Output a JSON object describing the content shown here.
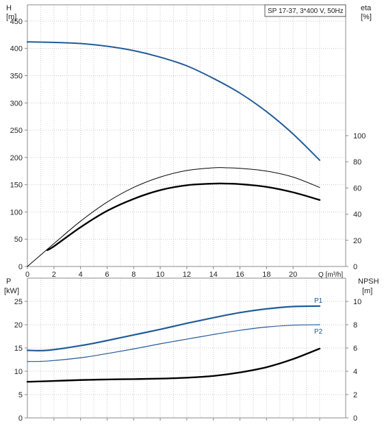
{
  "colors": {
    "head_curve": "#1f5a96",
    "eta_curve": "#000000",
    "power_p1": "#1f5a96",
    "power_p2": "#1f5a96",
    "npsh_curve": "#000000",
    "grid": "#c8c8c8",
    "frame": "#888888"
  },
  "chart_data": [
    {
      "type": "line",
      "name": "head-efficiency",
      "legend_box": "SP 17-37, 3*400 V, 50Hz",
      "xlabel": "Q [m³/h]",
      "xlim": [
        0,
        22
      ],
      "x_ticks": [
        0,
        2,
        4,
        6,
        8,
        10,
        12,
        14,
        16,
        18,
        20
      ],
      "y_left_label_lines": [
        "H",
        "[m]"
      ],
      "y_left_lim": [
        0,
        480
      ],
      "y_left_ticks": [
        0,
        50,
        100,
        150,
        200,
        250,
        300,
        350,
        400,
        450
      ],
      "y_right_label_lines": [
        "eta",
        "[%]"
      ],
      "y_right_lim": [
        0,
        100
      ],
      "y_right_ticks": [
        0,
        20,
        40,
        60,
        80,
        100
      ],
      "grid": true,
      "series": [
        {
          "key": "head",
          "axis": "left",
          "x": [
            0,
            2,
            4,
            6,
            8,
            10,
            12,
            14,
            16,
            18,
            20,
            22
          ],
          "y": [
            412,
            411,
            409,
            404,
            396,
            384,
            368,
            345,
            318,
            284,
            243,
            195
          ]
        },
        {
          "key": "eta_thin",
          "axis": "left",
          "x": [
            0,
            2,
            4,
            6,
            8,
            10,
            12,
            14,
            15,
            16,
            18,
            20,
            22
          ],
          "y": [
            0,
            42,
            83,
            118,
            145,
            164,
            176,
            181,
            181,
            180,
            175,
            164,
            145
          ]
        },
        {
          "key": "eta_thick",
          "axis": "left",
          "x": [
            1.5,
            2,
            4,
            6,
            8,
            10,
            12,
            14,
            15,
            16,
            18,
            20,
            22
          ],
          "y": [
            30,
            37,
            72,
            102,
            124,
            140,
            149,
            152,
            152,
            151,
            146,
            136,
            122
          ]
        }
      ]
    },
    {
      "type": "line",
      "name": "power-npsh",
      "xlim": [
        0,
        22
      ],
      "y_left_label_lines": [
        "P",
        "[kW]"
      ],
      "y_left_lim": [
        0,
        25
      ],
      "y_left_ticks": [
        0,
        5,
        10,
        15,
        20,
        25
      ],
      "y_right_label_lines": [
        "NPSH",
        "[m]"
      ],
      "y_right_lim": [
        0,
        10
      ],
      "y_right_ticks": [
        0,
        2,
        4,
        6,
        8,
        10
      ],
      "grid": true,
      "series": [
        {
          "key": "p1",
          "label": "P1",
          "axis": "left",
          "x": [
            0,
            1.5,
            4,
            6,
            8,
            10,
            12,
            14,
            16,
            18,
            20,
            22
          ],
          "y": [
            14.5,
            14.5,
            15.5,
            16.6,
            17.8,
            19.0,
            20.3,
            21.5,
            22.6,
            23.4,
            23.9,
            24.0
          ]
        },
        {
          "key": "p2",
          "label": "P2",
          "axis": "left",
          "x": [
            0,
            1.5,
            4,
            6,
            8,
            10,
            12,
            14,
            16,
            18,
            20,
            22
          ],
          "y": [
            12.1,
            12.2,
            12.9,
            13.8,
            14.8,
            15.9,
            16.9,
            17.9,
            18.8,
            19.5,
            19.9,
            20.0
          ]
        },
        {
          "key": "npsh",
          "axis": "right",
          "x": [
            0,
            1.5,
            4,
            6,
            8,
            10,
            12,
            14,
            16,
            18,
            20,
            22
          ],
          "y": [
            3.1,
            3.15,
            3.25,
            3.3,
            3.33,
            3.37,
            3.45,
            3.6,
            3.9,
            4.35,
            5.05,
            5.95
          ]
        }
      ]
    }
  ]
}
